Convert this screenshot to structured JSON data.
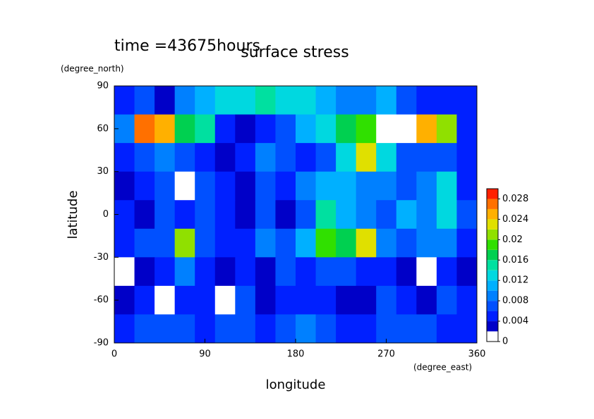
{
  "chart_data": {
    "type": "contour",
    "title": "time =43675hours",
    "subtitle": "surface stress",
    "x_label": "longitude",
    "x_unit": "(degree_east)",
    "y_label": "latitude",
    "y_unit": "(degree_north)",
    "xlim": [
      0,
      360
    ],
    "xticks": [
      0,
      90,
      180,
      270,
      360
    ],
    "ylim": [
      -90,
      90
    ],
    "yticks": [
      -90,
      -60,
      -30,
      0,
      30,
      60,
      90
    ],
    "x": [
      10,
      30,
      50,
      70,
      90,
      110,
      130,
      150,
      170,
      190,
      210,
      230,
      250,
      270,
      290,
      310,
      330,
      350
    ],
    "y": [
      80,
      60,
      40,
      20,
      0,
      -20,
      -40,
      -60,
      -80
    ],
    "z": [
      [
        0.004,
        0.006,
        0.002,
        0.008,
        0.01,
        0.012,
        0.012,
        0.014,
        0.012,
        0.012,
        0.01,
        0.008,
        0.008,
        0.01,
        0.006,
        0.004,
        0.004,
        0.004
      ],
      [
        0.008,
        0.026,
        0.024,
        0.016,
        0.014,
        0.004,
        0.002,
        0.004,
        0.006,
        0.01,
        0.012,
        0.016,
        0.018,
        0,
        0,
        0.024,
        0.02,
        0.004
      ],
      [
        0.004,
        0.006,
        0.008,
        0.006,
        0.004,
        0.002,
        0.004,
        0.008,
        0.006,
        0.004,
        0.006,
        0.012,
        0.022,
        0.012,
        0.006,
        0.006,
        0.006,
        0.004
      ],
      [
        0.002,
        0.004,
        0.006,
        0,
        0.006,
        0.004,
        0.002,
        0.006,
        0.004,
        0.008,
        0.01,
        0.01,
        0.008,
        0.008,
        0.006,
        0.008,
        0.012,
        0.004
      ],
      [
        0.004,
        0.002,
        0.006,
        0.004,
        0.006,
        0.004,
        0.002,
        0.006,
        0.002,
        0.006,
        0.014,
        0.01,
        0.008,
        0.006,
        0.01,
        0.008,
        0.012,
        0.006
      ],
      [
        0.004,
        0.006,
        0.006,
        0.02,
        0.006,
        0.004,
        0.004,
        0.008,
        0.006,
        0.01,
        0.018,
        0.016,
        0.022,
        0.008,
        0.006,
        0.008,
        0.008,
        0.004
      ],
      [
        0,
        0.002,
        0.004,
        0.008,
        0.004,
        0.002,
        0.004,
        0.002,
        0.006,
        0.004,
        0.006,
        0.006,
        0.004,
        0.004,
        0.002,
        0,
        0.004,
        0.002
      ],
      [
        0.002,
        0.004,
        0,
        0.004,
        0.004,
        0,
        0.006,
        0.002,
        0.004,
        0.004,
        0.004,
        0.002,
        0.002,
        0.006,
        0.004,
        0.002,
        0.006,
        0.004
      ],
      [
        0.004,
        0.006,
        0.006,
        0.006,
        0.004,
        0.006,
        0.006,
        0.004,
        0.006,
        0.008,
        0.006,
        0.004,
        0.004,
        0.006,
        0.006,
        0.006,
        0.004,
        0.004
      ]
    ],
    "levels": [
      0,
      0.002,
      0.004,
      0.006,
      0.008,
      0.01,
      0.012,
      0.014,
      0.016,
      0.018,
      0.02,
      0.022,
      0.024,
      0.026,
      0.028,
      0.03
    ],
    "colors": [
      "#ffffff",
      "#0000c8",
      "#0020ff",
      "#0050ff",
      "#0080ff",
      "#00b0ff",
      "#00d8e0",
      "#00e0a0",
      "#00d050",
      "#30e000",
      "#90e000",
      "#e0e000",
      "#ffb000",
      "#ff7000",
      "#ff2000"
    ],
    "colorbar_lim": [
      0,
      0.03
    ],
    "colorbar_ticks": [
      0,
      0.004,
      0.008,
      0.012,
      0.016,
      0.02,
      0.024,
      0.028
    ]
  }
}
